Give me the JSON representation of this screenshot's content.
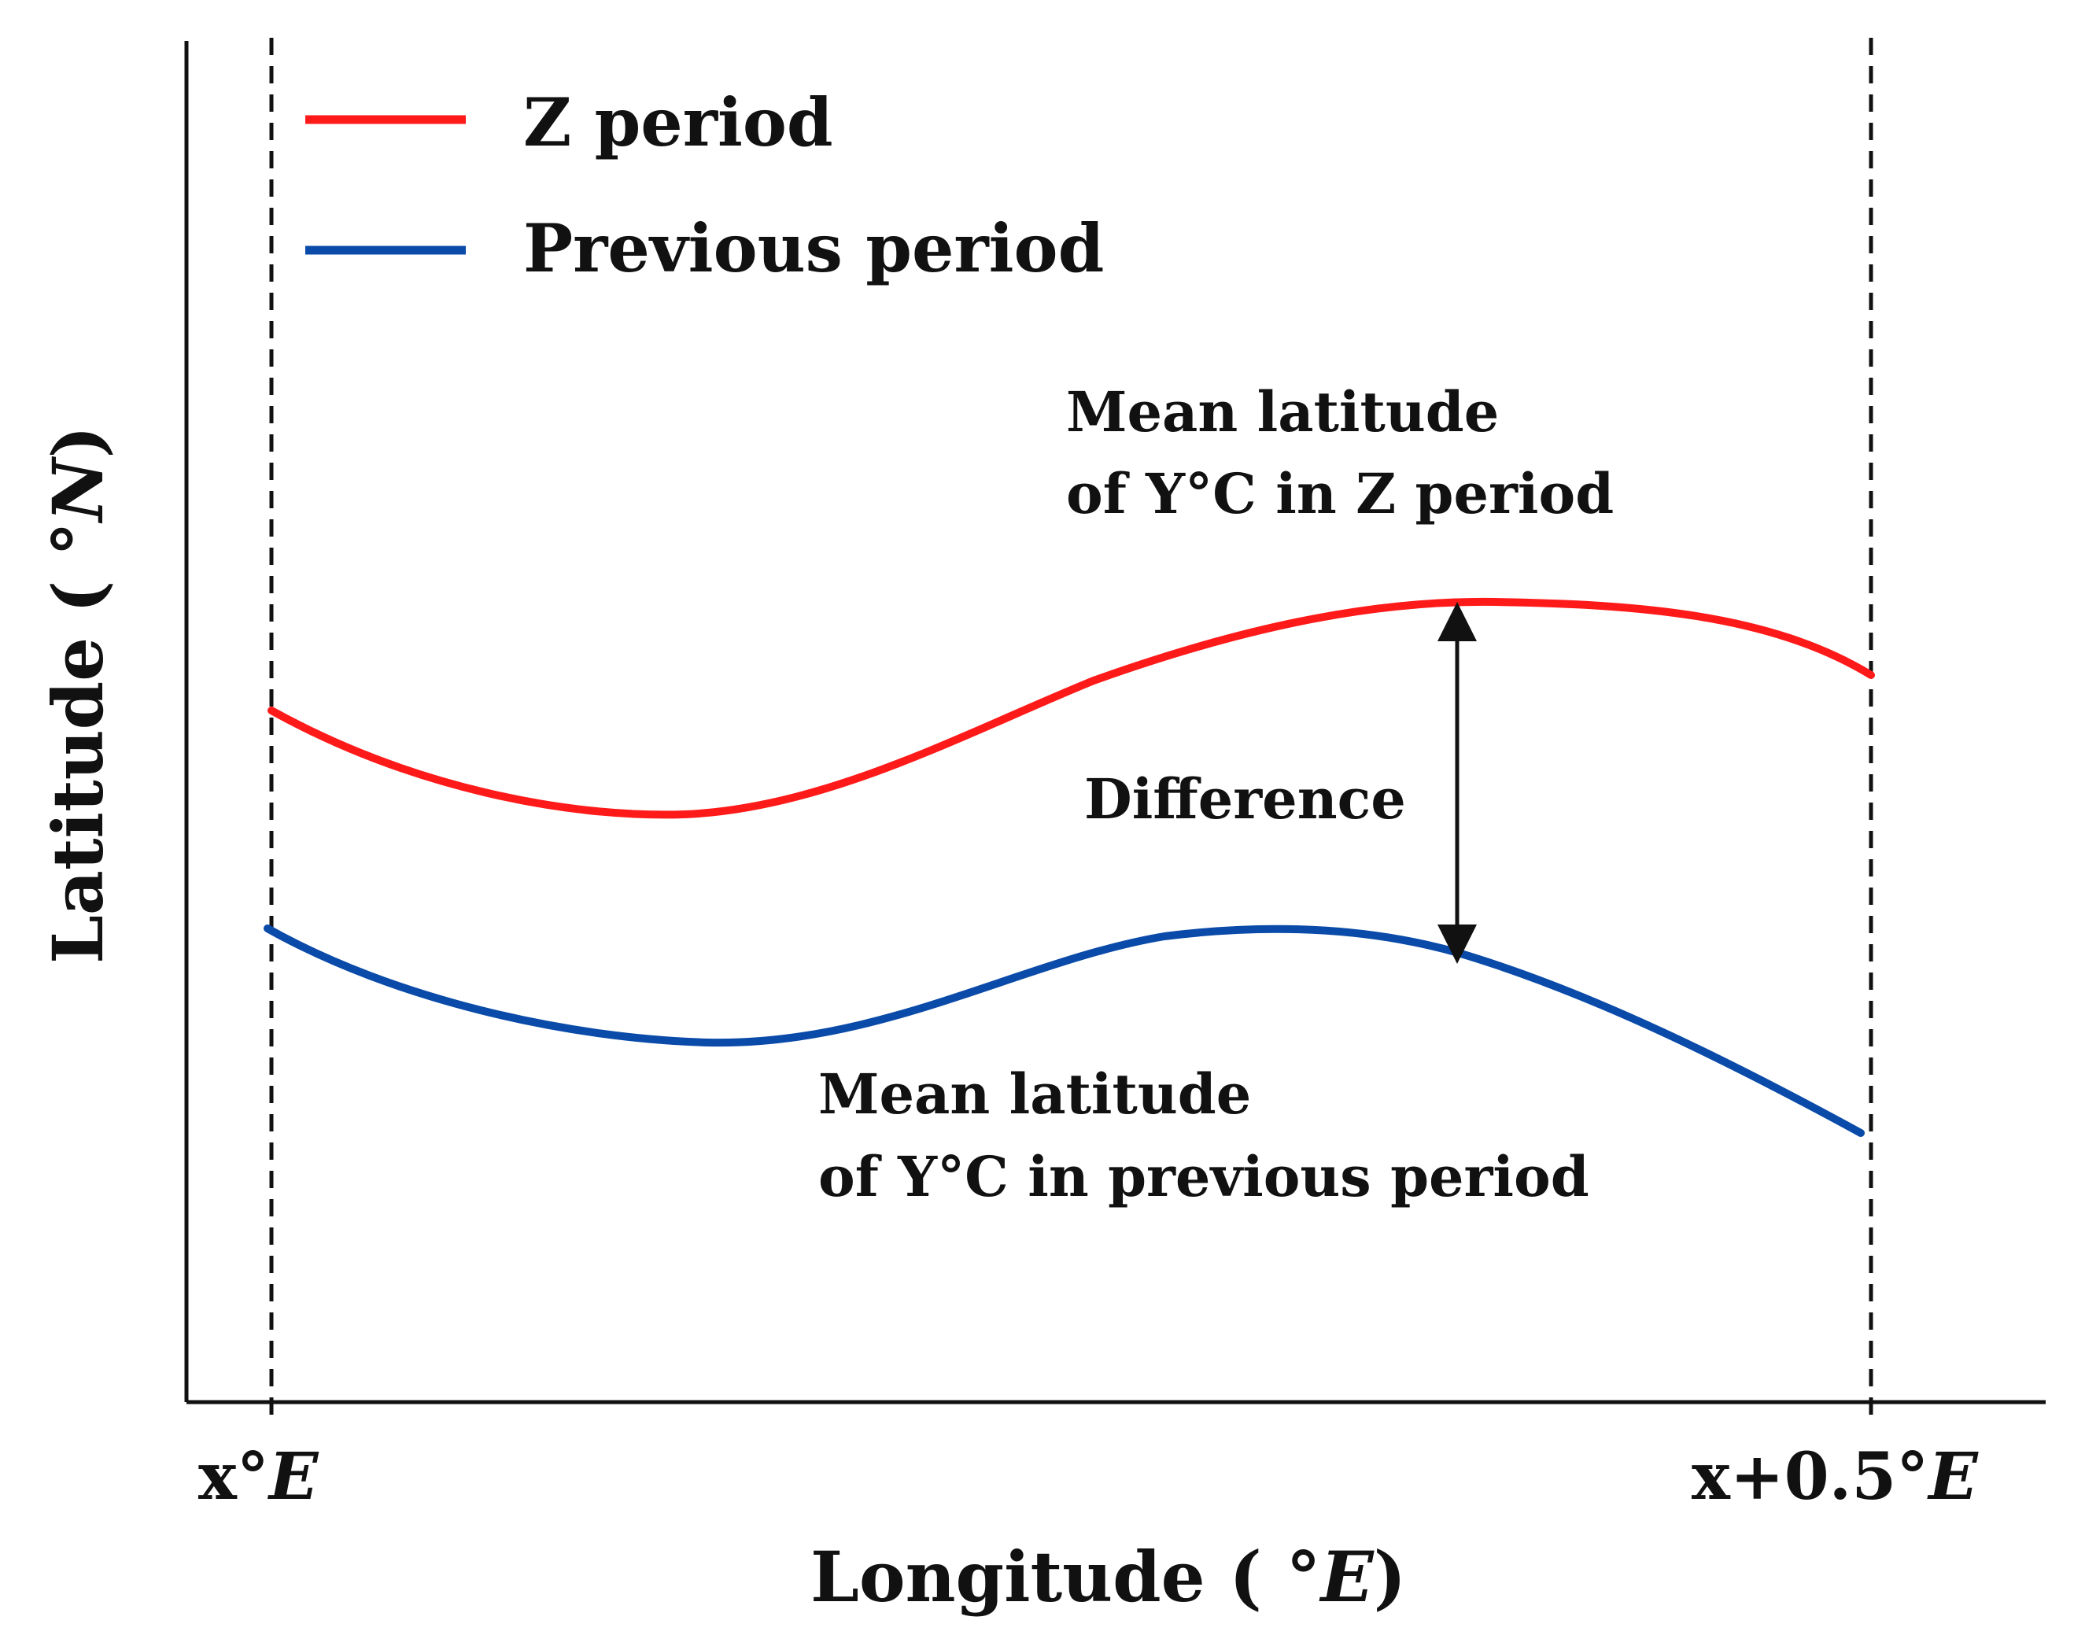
{
  "legend": {
    "items": [
      {
        "label": "Z period",
        "color": "#ff1a1a"
      },
      {
        "label": "Previous period",
        "color": "#0a4aa8"
      }
    ]
  },
  "axes": {
    "y_title": {
      "prefix": "Latitude ( ",
      "unit": "°N",
      "suffix": ")"
    },
    "x_title": {
      "prefix": "Longitude ( ",
      "unit": "°E",
      "suffix": ")"
    },
    "x_ticks": [
      {
        "prefix": "x°",
        "unit": "E"
      },
      {
        "prefix": "x+0.5°",
        "unit": "E"
      }
    ]
  },
  "annotations": {
    "z_label": {
      "line1": "Mean latitude",
      "line2": "of Y°C in Z period"
    },
    "prev_label": {
      "line1": "Mean latitude",
      "line2": "of Y°C in previous period"
    },
    "difference": "Difference"
  },
  "colors": {
    "z_period": "#ff1a1a",
    "previous_period": "#0a4aa8",
    "axis": "#111111"
  }
}
